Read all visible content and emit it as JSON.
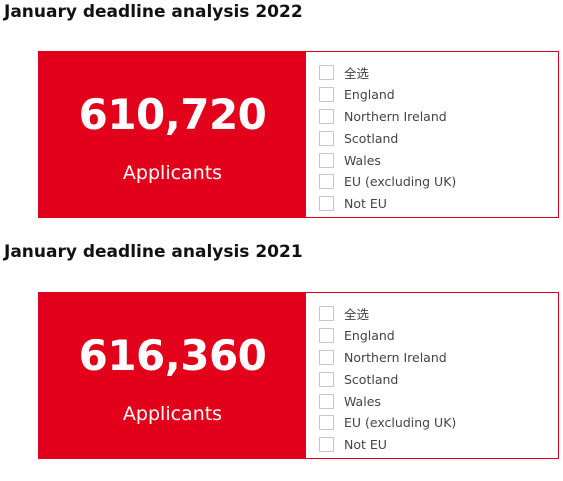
{
  "sections": [
    {
      "title": "January deadline analysis 2022",
      "value": "610,720",
      "label": "Applicants",
      "filters": [
        "全选",
        "England",
        "Northern Ireland",
        "Scotland",
        "Wales",
        "EU (excluding UK)",
        "Not EU"
      ]
    },
    {
      "title": "January deadline analysis 2021",
      "value": "616,360",
      "label": "Applicants",
      "filters": [
        "全选",
        "England",
        "Northern Ireland",
        "Scotland",
        "Wales",
        "EU (excluding UK)",
        "Not EU"
      ]
    }
  ],
  "colors": {
    "kpi_background": "#e2001a",
    "card_border": "#d9001b",
    "checkbox_border": "#c8c8c8"
  }
}
